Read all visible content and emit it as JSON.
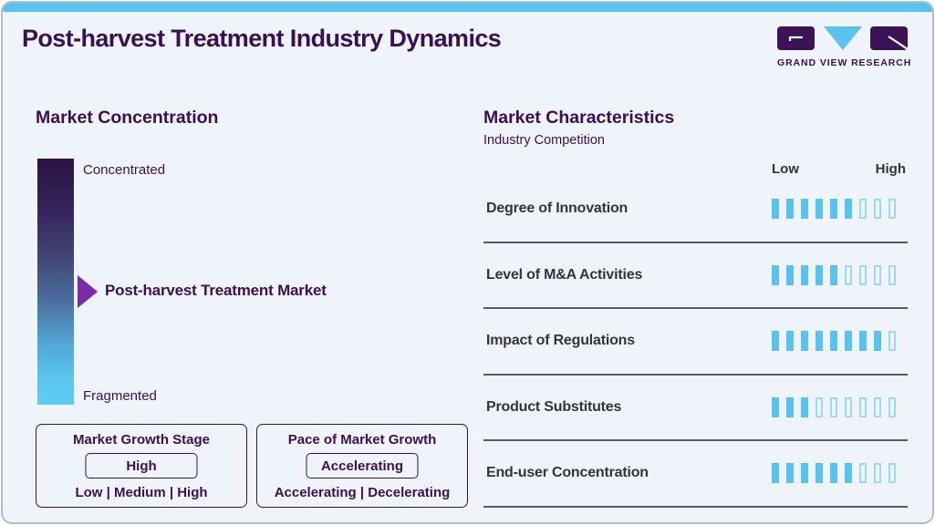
{
  "header": {
    "title": "Post-harvest Treatment Industry Dynamics",
    "brand": "GRAND VIEW RESEARCH"
  },
  "market_concentration": {
    "heading": "Market Concentration",
    "scale_top": "Concentrated",
    "scale_bottom": "Fragmented",
    "marker_label": "Post-harvest Treatment Market",
    "growth_stage": {
      "title": "Market Growth Stage",
      "value": "High",
      "options": "Low | Medium | High"
    },
    "pace": {
      "title": "Pace of Market Growth",
      "value": "Accelerating",
      "options": "Accelerating | Decelerating"
    }
  },
  "market_characteristics": {
    "heading": "Market Characteristics",
    "subtitle": "Industry Competition",
    "scale_low": "Low",
    "scale_high": "High",
    "rows": [
      {
        "label": "Degree of Innovation",
        "filled": 6,
        "total": 9
      },
      {
        "label": "Level of M&A Activities",
        "filled": 5,
        "total": 9
      },
      {
        "label": "Impact of Regulations",
        "filled": 8,
        "total": 9
      },
      {
        "label": "Product Substitutes",
        "filled": 3,
        "total": 9
      },
      {
        "label": "End-user Concentration",
        "filled": 6,
        "total": 9
      }
    ]
  },
  "chart_data": {
    "type": "bar",
    "title": "Market Characteristics",
    "subtitle": "Industry Competition",
    "categories": [
      "Degree of Innovation",
      "Level of M&A Activities",
      "Impact of Regulations",
      "Product Substitutes",
      "End-user Concentration"
    ],
    "values": [
      6,
      5,
      8,
      3,
      6
    ],
    "value_max": 9,
    "scale_labels": [
      "Low",
      "High"
    ],
    "orientation": "horizontal-rating-bars",
    "legend": false,
    "concentration_gauge": {
      "top_label": "Concentrated",
      "bottom_label": "Fragmented",
      "marker": "Post-harvest Treatment Market",
      "marker_position": "middle"
    }
  },
  "colors": {
    "accent_blue": "#57c3ee",
    "brand_purple": "#3b1053",
    "arrow_purple": "#7c2aa6",
    "hollow_bar_border": "#9ed9f4",
    "row_text": "#37333e",
    "card_background": "#eef4f9"
  }
}
